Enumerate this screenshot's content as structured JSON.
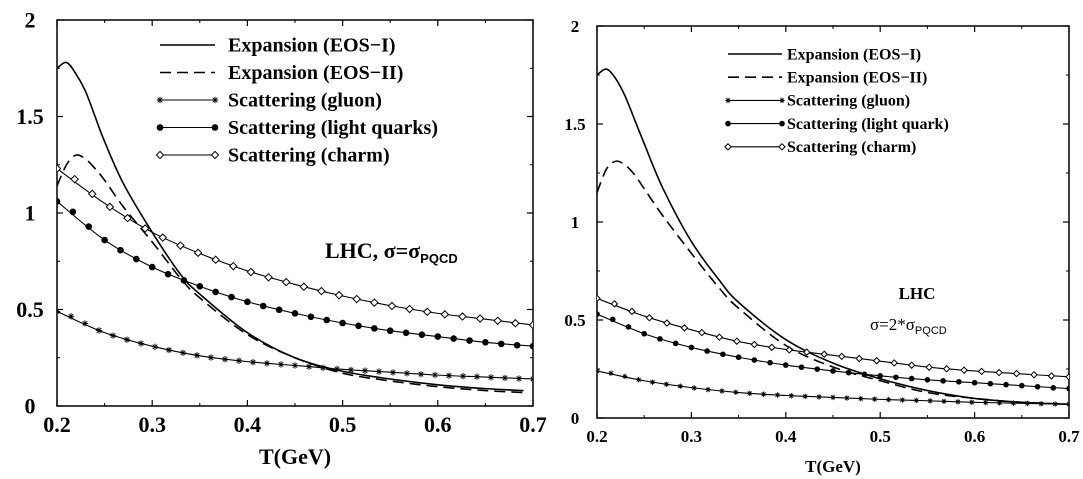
{
  "chart_data": [
    {
      "type": "line",
      "xlabel": "T(GeV)",
      "ylabel": "",
      "xlim": [
        0.2,
        0.7
      ],
      "ylim": [
        0,
        2
      ],
      "xticks": [
        "0.2",
        "0.3",
        "0.4",
        "0.5",
        "0.6",
        "0.7"
      ],
      "yticks": [
        "0",
        "0.5",
        "1",
        "1.5",
        "2"
      ],
      "legend_position": "top-right",
      "annotation": {
        "main": "LHC, σ=σ",
        "sub": "PQCD"
      },
      "series": [
        {
          "name": "Expansion (EOS−I)",
          "style": "solid",
          "marker": "none",
          "x": [
            0.2,
            0.21,
            0.22,
            0.23,
            0.24,
            0.25,
            0.27,
            0.3,
            0.33,
            0.35,
            0.4,
            0.45,
            0.5,
            0.55,
            0.6,
            0.65,
            0.69
          ],
          "y": [
            1.75,
            1.78,
            1.72,
            1.63,
            1.5,
            1.37,
            1.15,
            0.9,
            0.68,
            0.58,
            0.38,
            0.25,
            0.18,
            0.14,
            0.11,
            0.09,
            0.08
          ]
        },
        {
          "name": "Expansion (EOS−II)",
          "style": "dashed",
          "marker": "none",
          "x": [
            0.2,
            0.21,
            0.22,
            0.23,
            0.24,
            0.25,
            0.27,
            0.3,
            0.33,
            0.35,
            0.4,
            0.45,
            0.5,
            0.55,
            0.6,
            0.65,
            0.69
          ],
          "y": [
            1.14,
            1.25,
            1.3,
            1.28,
            1.23,
            1.17,
            1.03,
            0.85,
            0.66,
            0.56,
            0.37,
            0.25,
            0.17,
            0.13,
            0.1,
            0.08,
            0.07
          ]
        },
        {
          "name": "Scattering (gluon)",
          "style": "solid",
          "marker": "star",
          "x": [
            0.2,
            0.25,
            0.3,
            0.35,
            0.4,
            0.45,
            0.5,
            0.55,
            0.6,
            0.65,
            0.7
          ],
          "y": [
            0.49,
            0.38,
            0.31,
            0.26,
            0.23,
            0.21,
            0.19,
            0.175,
            0.16,
            0.15,
            0.14
          ]
        },
        {
          "name": "Scattering (light quarks)",
          "style": "solid",
          "marker": "dot",
          "x": [
            0.2,
            0.25,
            0.3,
            0.35,
            0.4,
            0.45,
            0.5,
            0.55,
            0.6,
            0.65,
            0.7
          ],
          "y": [
            1.06,
            0.86,
            0.72,
            0.62,
            0.54,
            0.48,
            0.43,
            0.39,
            0.36,
            0.33,
            0.31
          ]
        },
        {
          "name": "Scattering (charm)",
          "style": "solid",
          "marker": "diamond",
          "x": [
            0.2,
            0.25,
            0.3,
            0.35,
            0.4,
            0.45,
            0.5,
            0.55,
            0.6,
            0.65,
            0.7
          ],
          "y": [
            1.23,
            1.05,
            0.9,
            0.79,
            0.7,
            0.63,
            0.57,
            0.52,
            0.48,
            0.45,
            0.42
          ]
        }
      ]
    },
    {
      "type": "line",
      "xlabel": "T(GeV)",
      "ylabel": "",
      "xlim": [
        0.2,
        0.7
      ],
      "ylim": [
        0,
        2
      ],
      "xticks": [
        "0.2",
        "0.3",
        "0.4",
        "0.5",
        "0.6",
        "0.7"
      ],
      "yticks": [
        "0",
        "0.5",
        "1",
        "1.5",
        "2"
      ],
      "legend_position": "top-right",
      "annotation": {
        "line1": "LHC",
        "main": "σ=2*σ",
        "sub": "PQCD"
      },
      "series": [
        {
          "name": "Expansion (EOS−I)",
          "style": "solid",
          "marker": "none",
          "x": [
            0.2,
            0.21,
            0.22,
            0.23,
            0.24,
            0.25,
            0.27,
            0.3,
            0.33,
            0.35,
            0.4,
            0.45,
            0.5,
            0.55,
            0.6,
            0.65,
            0.7
          ],
          "y": [
            1.75,
            1.78,
            1.73,
            1.64,
            1.52,
            1.4,
            1.17,
            0.9,
            0.7,
            0.59,
            0.4,
            0.28,
            0.2,
            0.14,
            0.1,
            0.08,
            0.07
          ]
        },
        {
          "name": "Expansion (EOS−II)",
          "style": "dashed",
          "marker": "none",
          "x": [
            0.2,
            0.21,
            0.22,
            0.23,
            0.24,
            0.25,
            0.27,
            0.3,
            0.33,
            0.35,
            0.4,
            0.45,
            0.5,
            0.55,
            0.6,
            0.65,
            0.7
          ],
          "y": [
            1.15,
            1.27,
            1.31,
            1.29,
            1.24,
            1.17,
            1.03,
            0.84,
            0.66,
            0.56,
            0.37,
            0.26,
            0.19,
            0.13,
            0.1,
            0.08,
            0.07
          ]
        },
        {
          "name": "Scattering (gluon)",
          "style": "solid",
          "marker": "star",
          "x": [
            0.2,
            0.25,
            0.3,
            0.35,
            0.4,
            0.45,
            0.5,
            0.55,
            0.6,
            0.65,
            0.7
          ],
          "y": [
            0.24,
            0.19,
            0.155,
            0.13,
            0.115,
            0.105,
            0.095,
            0.088,
            0.08,
            0.075,
            0.07
          ]
        },
        {
          "name": "Scattering (light quark)",
          "style": "solid",
          "marker": "dot",
          "x": [
            0.2,
            0.25,
            0.3,
            0.35,
            0.4,
            0.45,
            0.5,
            0.55,
            0.6,
            0.65,
            0.7
          ],
          "y": [
            0.53,
            0.43,
            0.36,
            0.31,
            0.27,
            0.24,
            0.215,
            0.195,
            0.18,
            0.165,
            0.15
          ]
        },
        {
          "name": "Scattering (charm)",
          "style": "solid",
          "marker": "diamond",
          "x": [
            0.2,
            0.25,
            0.3,
            0.35,
            0.4,
            0.45,
            0.5,
            0.55,
            0.6,
            0.65,
            0.7
          ],
          "y": [
            0.61,
            0.52,
            0.45,
            0.39,
            0.35,
            0.32,
            0.29,
            0.26,
            0.24,
            0.225,
            0.21
          ]
        }
      ]
    }
  ]
}
